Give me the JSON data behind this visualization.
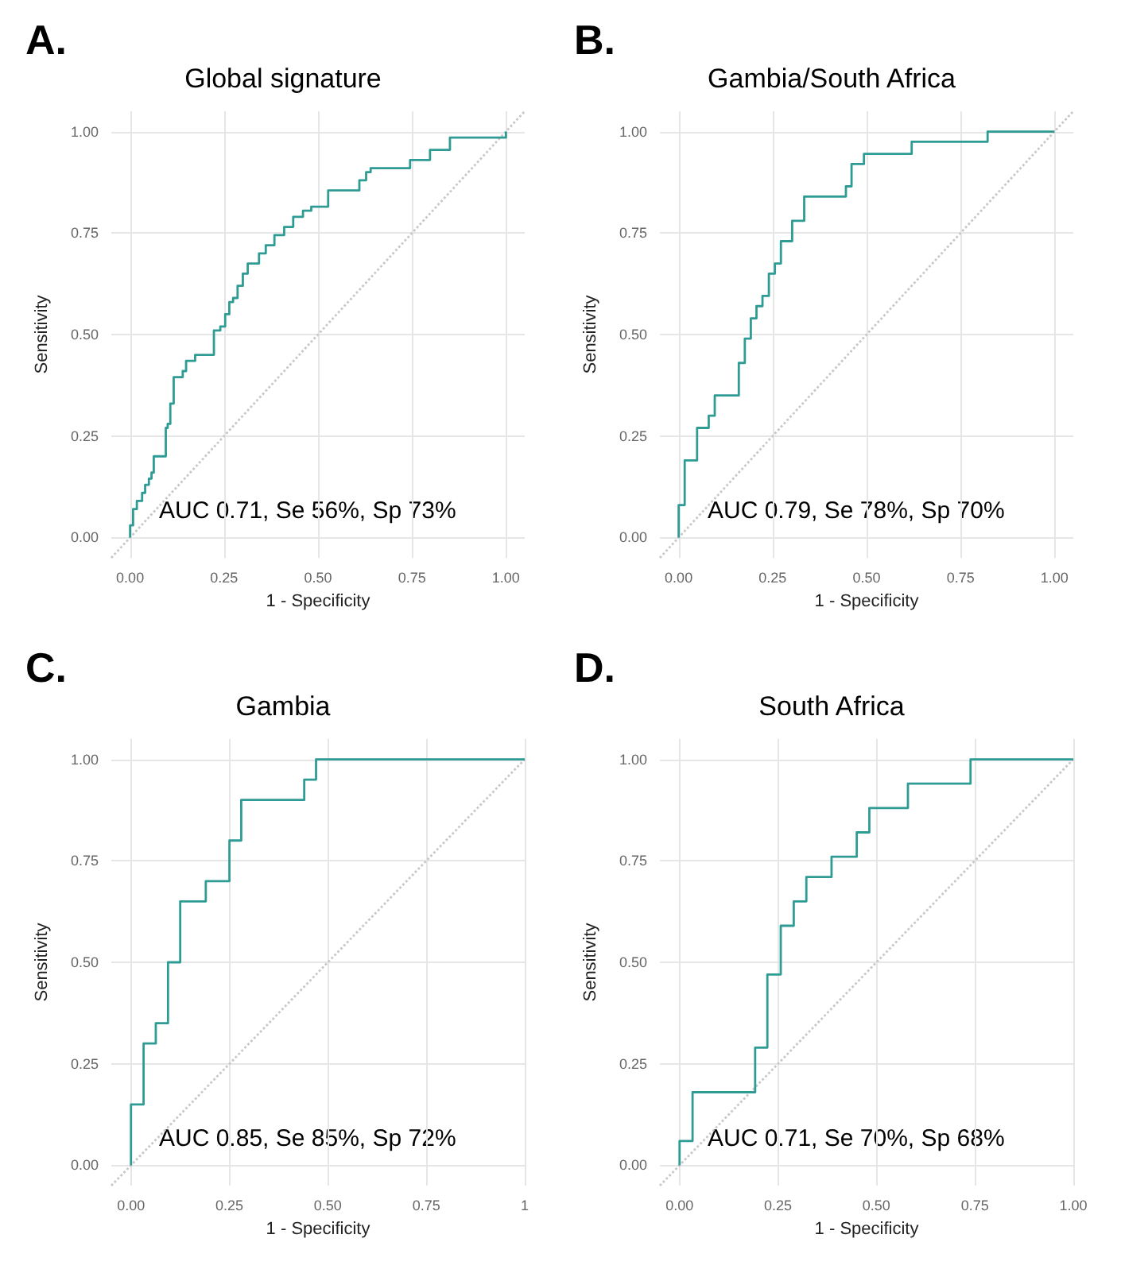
{
  "chart_data": [
    {
      "type": "step",
      "title": "Global signature",
      "xlabel": "1 - Specificity",
      "ylabel": "Sensitivity",
      "annotations": [
        "A.",
        "AUC 0.71, Se 56%, Sp 73%"
      ],
      "xlim": [
        -0.05,
        1.05
      ],
      "ylim": [
        -0.05,
        1.05
      ],
      "xticks": [
        {
          "value": 0,
          "label": "0.00"
        },
        {
          "value": 0.25,
          "label": "0.25"
        },
        {
          "value": 0.5,
          "label": "0.50"
        },
        {
          "value": 0.75,
          "label": "0.75"
        },
        {
          "value": 1,
          "label": "1.00"
        }
      ],
      "yticks": [
        {
          "value": 0,
          "label": "0.00"
        },
        {
          "value": 0.25,
          "label": "0.25"
        },
        {
          "value": 0.5,
          "label": "0.50"
        },
        {
          "value": 0.75,
          "label": "0.75"
        },
        {
          "value": 1,
          "label": "1.00"
        }
      ],
      "grid": true,
      "series": [
        {
          "color": "#2e9c94",
          "x": [
            0,
            0,
            0.008,
            0.018,
            0.032,
            0.04,
            0.05,
            0.057,
            0.063,
            0.095,
            0.1,
            0.107,
            0.116,
            0.14,
            0.149,
            0.173,
            0.223,
            0.24,
            0.253,
            0.264,
            0.274,
            0.286,
            0.3,
            0.313,
            0.343,
            0.361,
            0.384,
            0.41,
            0.434,
            0.46,
            0.482,
            0.527,
            0.61,
            0.628,
            0.64,
            0.745,
            0.798,
            0.851,
            1.0
          ],
          "values": [
            0,
            0.03,
            0.07,
            0.09,
            0.11,
            0.13,
            0.145,
            0.16,
            0.2,
            0.27,
            0.28,
            0.33,
            0.395,
            0.41,
            0.435,
            0.45,
            0.51,
            0.52,
            0.55,
            0.58,
            0.59,
            0.62,
            0.65,
            0.675,
            0.7,
            0.72,
            0.745,
            0.765,
            0.79,
            0.805,
            0.815,
            0.855,
            0.88,
            0.9,
            0.91,
            0.93,
            0.955,
            0.985,
            1.0
          ]
        },
        {
          "type": "line",
          "line_style": "dotted",
          "color": "#c8c8c8",
          "x": [
            -0.05,
            1.05
          ],
          "values": [
            -0.05,
            1.05
          ]
        }
      ]
    },
    {
      "type": "step",
      "title": "Gambia/South Africa",
      "xlabel": "1 - Specificity",
      "ylabel": "Sensitivity",
      "annotations": [
        "B.",
        "AUC 0.79, Se 78%, Sp 70%"
      ],
      "xlim": [
        -0.05,
        1.05
      ],
      "ylim": [
        -0.05,
        1.05
      ],
      "xticks": [
        {
          "value": 0,
          "label": "0.00"
        },
        {
          "value": 0.25,
          "label": "0.25"
        },
        {
          "value": 0.5,
          "label": "0.50"
        },
        {
          "value": 0.75,
          "label": "0.75"
        },
        {
          "value": 1,
          "label": "1.00"
        }
      ],
      "yticks": [
        {
          "value": 0,
          "label": "0.00"
        },
        {
          "value": 0.25,
          "label": "0.25"
        },
        {
          "value": 0.5,
          "label": "0.50"
        },
        {
          "value": 0.75,
          "label": "0.75"
        },
        {
          "value": 1,
          "label": "1.00"
        }
      ],
      "grid": true,
      "series": [
        {
          "color": "#2e9c94",
          "x": [
            0,
            0,
            0.016,
            0.049,
            0.08,
            0.096,
            0.16,
            0.176,
            0.192,
            0.207,
            0.223,
            0.24,
            0.256,
            0.272,
            0.302,
            0.334,
            0.445,
            0.46,
            0.493,
            0.62,
            0.822,
            1.0
          ],
          "values": [
            0,
            0.08,
            0.19,
            0.27,
            0.3,
            0.35,
            0.43,
            0.49,
            0.54,
            0.57,
            0.595,
            0.65,
            0.675,
            0.73,
            0.78,
            0.84,
            0.865,
            0.92,
            0.945,
            0.975,
            1.0,
            1.0
          ]
        },
        {
          "type": "line",
          "line_style": "dotted",
          "color": "#c8c8c8",
          "x": [
            -0.05,
            1.05
          ],
          "values": [
            -0.05,
            1.05
          ]
        }
      ]
    },
    {
      "type": "step",
      "title": "Gambia",
      "xlabel": "1 - Specificity",
      "ylabel": "Sensitivity",
      "annotations": [
        "C.",
        "AUC 0.85, Se 85%, Sp 72%"
      ],
      "xlim": [
        -0.05,
        1.0
      ],
      "ylim": [
        -0.05,
        1.05
      ],
      "xticks": [
        {
          "value": 0,
          "label": "0.00"
        },
        {
          "value": 0.25,
          "label": "0.25"
        },
        {
          "value": 0.5,
          "label": "0.50"
        },
        {
          "value": 0.75,
          "label": "0.75"
        },
        1
      ],
      "yticks": [
        {
          "value": 0,
          "label": "0.00"
        },
        {
          "value": 0.25,
          "label": "0.25"
        },
        {
          "value": 0.5,
          "label": "0.50"
        },
        {
          "value": 0.75,
          "label": "0.75"
        },
        {
          "value": 1,
          "label": "1.00"
        }
      ],
      "grid": true,
      "series": [
        {
          "color": "#2e9c94",
          "x": [
            0,
            0,
            0.032,
            0.063,
            0.094,
            0.125,
            0.19,
            0.25,
            0.28,
            0.44,
            0.47,
            1.0
          ],
          "values": [
            0,
            0.15,
            0.3,
            0.35,
            0.5,
            0.65,
            0.7,
            0.8,
            0.9,
            0.95,
            1.0,
            1.0
          ]
        },
        {
          "type": "line",
          "line_style": "dotted",
          "color": "#c8c8c8",
          "x": [
            -0.05,
            1.0
          ],
          "values": [
            -0.05,
            1.0
          ]
        }
      ]
    },
    {
      "type": "step",
      "title": "South Africa",
      "xlabel": "1 - Specificity",
      "ylabel": "Sensitivity",
      "annotations": [
        "D.",
        "AUC 0.71, Se 70%, Sp 68%"
      ],
      "xlim": [
        -0.05,
        1.0
      ],
      "ylim": [
        -0.05,
        1.05
      ],
      "xticks": [
        {
          "value": 0,
          "label": "0.00"
        },
        {
          "value": 0.25,
          "label": "0.25"
        },
        {
          "value": 0.5,
          "label": "0.50"
        },
        {
          "value": 0.75,
          "label": "0.75"
        },
        {
          "value": 1,
          "label": "1.00"
        }
      ],
      "yticks": [
        {
          "value": 0,
          "label": "0.00"
        },
        {
          "value": 0.25,
          "label": "0.25"
        },
        {
          "value": 0.5,
          "label": "0.50"
        },
        {
          "value": 0.75,
          "label": "0.75"
        },
        {
          "value": 1,
          "label": "1.00"
        }
      ],
      "grid": true,
      "series": [
        {
          "color": "#2e9c94",
          "x": [
            0,
            0,
            0.033,
            0.192,
            0.223,
            0.257,
            0.29,
            0.322,
            0.386,
            0.45,
            0.482,
            0.58,
            0.739,
            1.0
          ],
          "values": [
            0,
            0.06,
            0.18,
            0.29,
            0.47,
            0.59,
            0.65,
            0.71,
            0.76,
            0.82,
            0.88,
            0.94,
            1.0,
            1.0
          ]
        },
        {
          "type": "line",
          "line_style": "dotted",
          "color": "#c8c8c8",
          "x": [
            -0.05,
            1.0
          ],
          "values": [
            -0.05,
            1.0
          ]
        }
      ]
    }
  ]
}
